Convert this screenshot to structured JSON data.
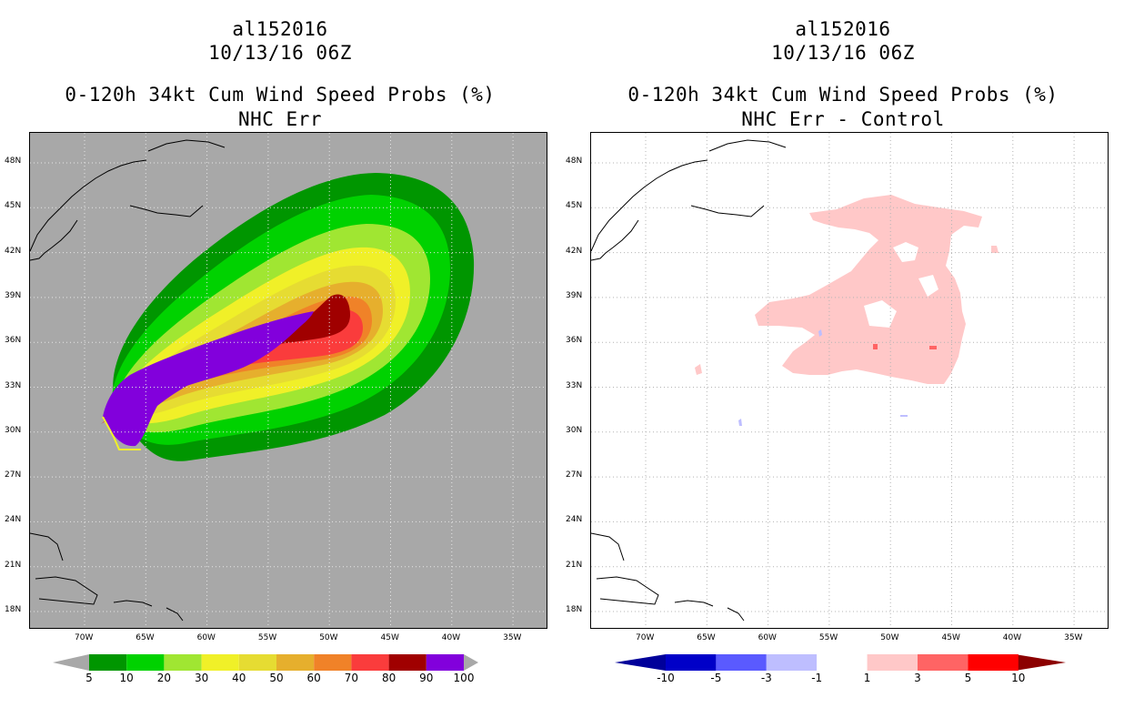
{
  "left_panel": {
    "title_lines": [
      "al152016",
      "10/13/16 06Z",
      "0-120h 34kt Cum Wind Speed Probs (%)",
      "NHC Err"
    ],
    "background_color": "#a8a8a8",
    "colorbar": {
      "labels": [
        "5",
        "10",
        "20",
        "30",
        "40",
        "50",
        "60",
        "70",
        "80",
        "90",
        "100"
      ],
      "colors": [
        "#009600",
        "#00d200",
        "#a0e632",
        "#f0f028",
        "#e6dc32",
        "#e6af2d",
        "#f08228",
        "#fa3c3c",
        "#a00000",
        "#8200dc"
      ]
    }
  },
  "right_panel": {
    "title_lines": [
      "al152016",
      "10/13/16 06Z",
      "0-120h 34kt Cum Wind Speed Probs (%)",
      "NHC Err - Control"
    ],
    "background_color": "#ffffff",
    "colorbar": {
      "labels": [
        "-10",
        "-5",
        "-3",
        "-1",
        "1",
        "3",
        "5",
        "10"
      ],
      "colors": [
        "#0000c8",
        "#5a5aff",
        "#bebeff",
        "#ffffff",
        "#ffc8c8",
        "#ff6464",
        "#ff0000"
      ],
      "end_colors": [
        "#00009a",
        "#8c0000"
      ]
    }
  },
  "axes": {
    "lat_labels": [
      "48N",
      "45N",
      "42N",
      "39N",
      "36N",
      "33N",
      "30N",
      "27N",
      "24N",
      "21N",
      "18N"
    ],
    "lon_labels": [
      "70W",
      "65W",
      "60W",
      "55W",
      "50W",
      "45W",
      "40W",
      "35W"
    ]
  }
}
